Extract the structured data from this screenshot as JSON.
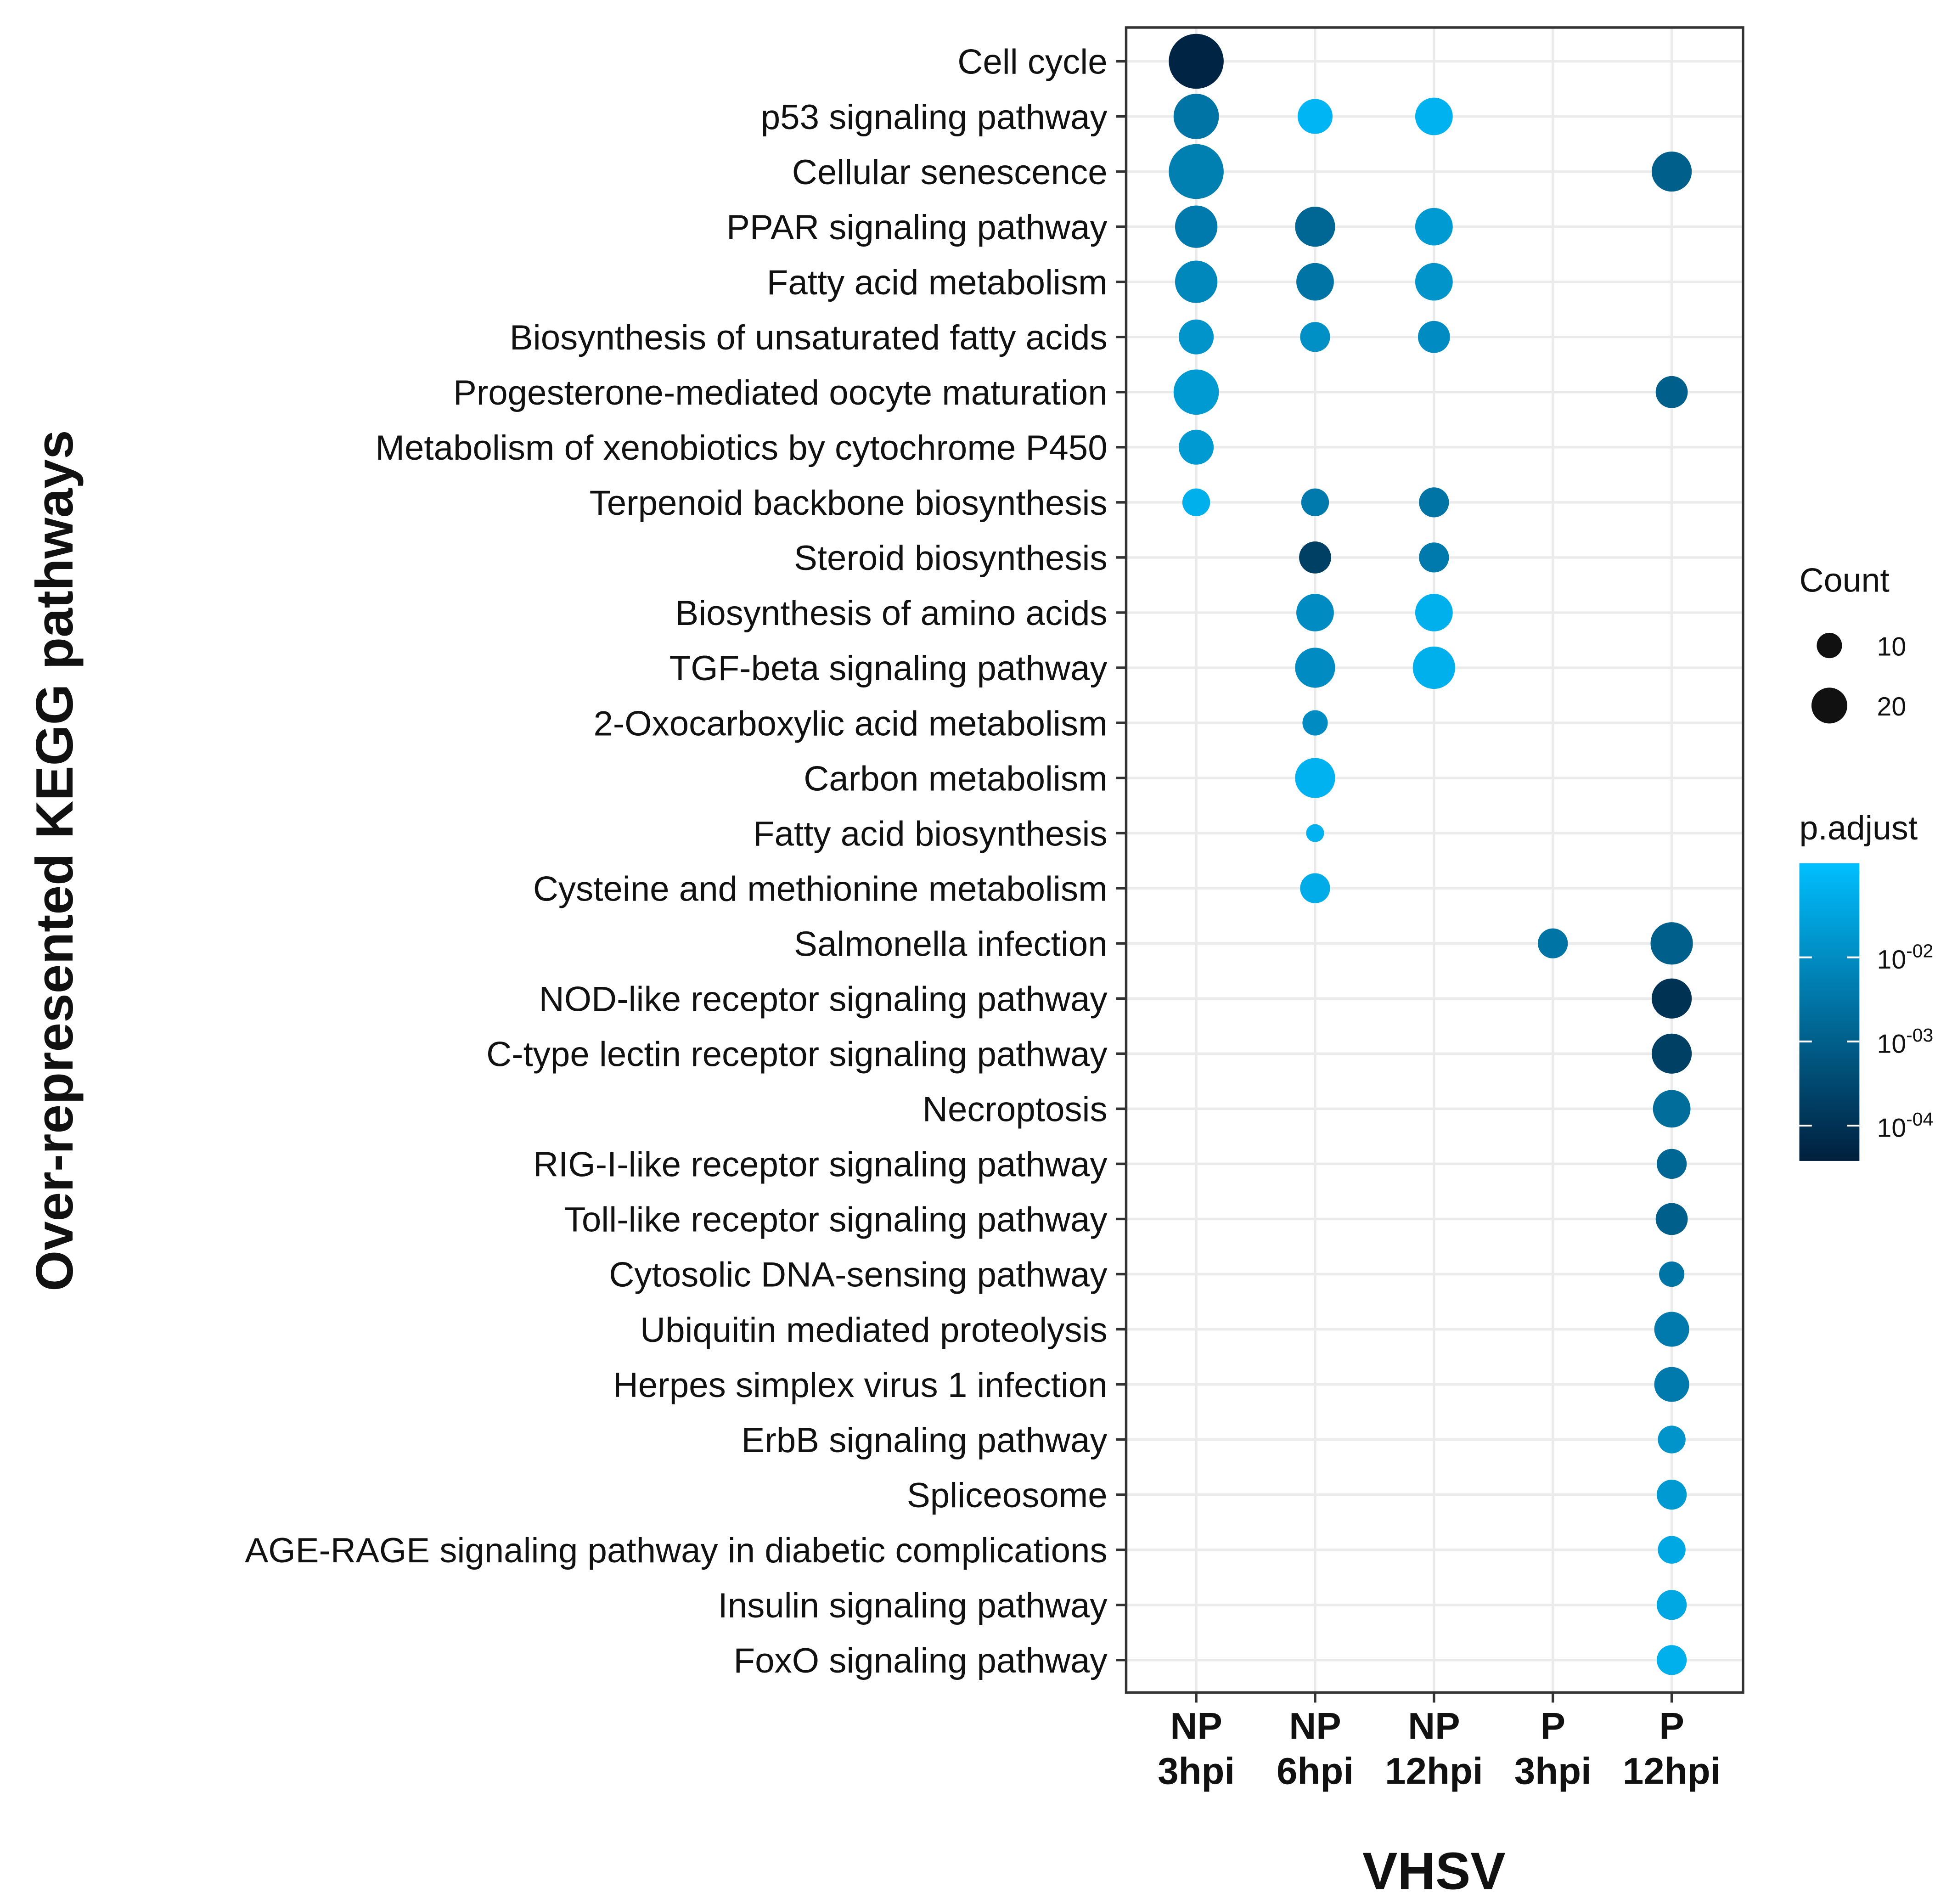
{
  "chart_data": {
    "type": "scatter",
    "subtype": "dot-plot",
    "xlabel": "VHSV",
    "ylabel": "Over-represented KEGG pathways",
    "conditions": [
      {
        "line1": "NP",
        "line2": "3hpi"
      },
      {
        "line1": "NP",
        "line2": "6hpi"
      },
      {
        "line1": "NP",
        "line2": "12hpi"
      },
      {
        "line1": "P",
        "line2": "3hpi"
      },
      {
        "line1": "P",
        "line2": "12hpi"
      }
    ],
    "pathways": [
      "Cell cycle",
      "p53 signaling pathway",
      "Cellular senescence",
      "PPAR signaling pathway",
      "Fatty acid metabolism",
      "Biosynthesis of unsaturated fatty acids",
      "Progesterone-mediated oocyte maturation",
      "Metabolism of xenobiotics by cytochrome P450",
      "Terpenoid backbone biosynthesis",
      "Steroid biosynthesis",
      "Biosynthesis of amino acids",
      "TGF-beta signaling pathway",
      "2-Oxocarboxylic acid metabolism",
      "Carbon metabolism",
      "Fatty acid biosynthesis",
      "Cysteine and methionine metabolism",
      "Salmonella infection",
      "NOD-like receptor signaling pathway",
      "C-type lectin receptor signaling pathway",
      "Necroptosis",
      "RIG-I-like receptor signaling pathway",
      "Toll-like receptor signaling pathway",
      "Cytosolic DNA-sensing pathway",
      "Ubiquitin mediated proteolysis",
      "Herpes simplex virus 1 infection",
      "ErbB signaling pathway",
      "Spliceosome",
      "AGE-RAGE signaling pathway in diabetic complications",
      "Insulin signaling pathway",
      "FoxO signaling pathway"
    ],
    "points": [
      {
        "row": 0,
        "col": 0,
        "count": 47,
        "p_adjust": 5e-05
      },
      {
        "row": 1,
        "col": 0,
        "count": 32,
        "p_adjust": 0.003
      },
      {
        "row": 1,
        "col": 1,
        "count": 19,
        "p_adjust": 0.08
      },
      {
        "row": 1,
        "col": 2,
        "count": 22,
        "p_adjust": 0.07
      },
      {
        "row": 2,
        "col": 0,
        "count": 47,
        "p_adjust": 0.005
      },
      {
        "row": 2,
        "col": 4,
        "count": 25,
        "p_adjust": 0.001
      },
      {
        "row": 3,
        "col": 0,
        "count": 28,
        "p_adjust": 0.004
      },
      {
        "row": 3,
        "col": 1,
        "count": 25,
        "p_adjust": 0.0015
      },
      {
        "row": 3,
        "col": 2,
        "count": 22,
        "p_adjust": 0.02
      },
      {
        "row": 4,
        "col": 0,
        "count": 28,
        "p_adjust": 0.008
      },
      {
        "row": 4,
        "col": 1,
        "count": 22,
        "p_adjust": 0.003
      },
      {
        "row": 4,
        "col": 2,
        "count": 22,
        "p_adjust": 0.015
      },
      {
        "row": 5,
        "col": 0,
        "count": 19,
        "p_adjust": 0.015
      },
      {
        "row": 5,
        "col": 1,
        "count": 14,
        "p_adjust": 0.012
      },
      {
        "row": 5,
        "col": 2,
        "count": 16,
        "p_adjust": 0.01
      },
      {
        "row": 6,
        "col": 0,
        "count": 32,
        "p_adjust": 0.02
      },
      {
        "row": 6,
        "col": 4,
        "count": 16,
        "p_adjust": 0.001
      },
      {
        "row": 7,
        "col": 0,
        "count": 19,
        "p_adjust": 0.02
      },
      {
        "row": 8,
        "col": 0,
        "count": 12,
        "p_adjust": 0.06
      },
      {
        "row": 8,
        "col": 1,
        "count": 12,
        "p_adjust": 0.004
      },
      {
        "row": 8,
        "col": 2,
        "count": 14,
        "p_adjust": 0.003
      },
      {
        "row": 9,
        "col": 1,
        "count": 16,
        "p_adjust": 0.0002
      },
      {
        "row": 9,
        "col": 2,
        "count": 14,
        "p_adjust": 0.004
      },
      {
        "row": 10,
        "col": 1,
        "count": 22,
        "p_adjust": 0.01
      },
      {
        "row": 10,
        "col": 2,
        "count": 22,
        "p_adjust": 0.06
      },
      {
        "row": 11,
        "col": 1,
        "count": 25,
        "p_adjust": 0.01
      },
      {
        "row": 11,
        "col": 2,
        "count": 28,
        "p_adjust": 0.06
      },
      {
        "row": 12,
        "col": 1,
        "count": 10,
        "p_adjust": 0.01
      },
      {
        "row": 13,
        "col": 1,
        "count": 25,
        "p_adjust": 0.07
      },
      {
        "row": 14,
        "col": 1,
        "count": 5,
        "p_adjust": 0.07
      },
      {
        "row": 15,
        "col": 1,
        "count": 14,
        "p_adjust": 0.05
      },
      {
        "row": 16,
        "col": 3,
        "count": 14,
        "p_adjust": 0.003
      },
      {
        "row": 16,
        "col": 4,
        "count": 28,
        "p_adjust": 0.001
      },
      {
        "row": 17,
        "col": 4,
        "count": 25,
        "p_adjust": 0.0001
      },
      {
        "row": 18,
        "col": 4,
        "count": 25,
        "p_adjust": 0.0002
      },
      {
        "row": 19,
        "col": 4,
        "count": 22,
        "p_adjust": 0.002
      },
      {
        "row": 20,
        "col": 4,
        "count": 14,
        "p_adjust": 0.0015
      },
      {
        "row": 21,
        "col": 4,
        "count": 16,
        "p_adjust": 0.001
      },
      {
        "row": 22,
        "col": 4,
        "count": 10,
        "p_adjust": 0.003
      },
      {
        "row": 23,
        "col": 4,
        "count": 19,
        "p_adjust": 0.004
      },
      {
        "row": 24,
        "col": 4,
        "count": 19,
        "p_adjust": 0.004
      },
      {
        "row": 25,
        "col": 4,
        "count": 12,
        "p_adjust": 0.015
      },
      {
        "row": 26,
        "col": 4,
        "count": 14,
        "p_adjust": 0.02
      },
      {
        "row": 27,
        "col": 4,
        "count": 12,
        "p_adjust": 0.04
      },
      {
        "row": 28,
        "col": 4,
        "count": 14,
        "p_adjust": 0.04
      },
      {
        "row": 29,
        "col": 4,
        "count": 14,
        "p_adjust": 0.06
      }
    ],
    "legend": {
      "size_title": "Count",
      "size_breaks": [
        {
          "value": 10,
          "label": "10"
        },
        {
          "value": 20,
          "label": "20"
        }
      ],
      "color_title": "p.adjust",
      "color_breaks": [
        {
          "value": 0.01,
          "base": "10",
          "exp": "-02"
        },
        {
          "value": 0.001,
          "base": "10",
          "exp": "-03"
        },
        {
          "value": 0.0001,
          "base": "10",
          "exp": "-04"
        }
      ],
      "color_low": "#001f3d",
      "color_high": "#00bfff",
      "placement": "right"
    },
    "grid": true
  }
}
